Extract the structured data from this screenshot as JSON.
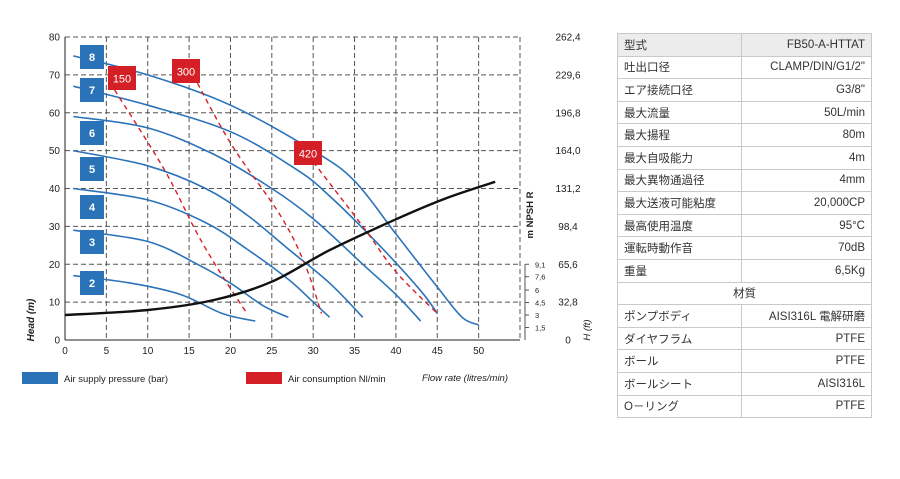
{
  "chart_data": {
    "type": "line",
    "xlabel": "Flow rate (litres/min)",
    "ylabel_left": "Head (m)",
    "ylabel_right": "H (ft)",
    "npsh_label": "m NPSH R",
    "xlim": [
      0,
      55
    ],
    "ylim": [
      0,
      80
    ],
    "grid": true,
    "x_ticks": [
      "0",
      "5",
      "10",
      "15",
      "20",
      "25",
      "30",
      "35",
      "40",
      "45",
      "50"
    ],
    "y_ticks": [
      "0",
      "10",
      "20",
      "30",
      "40",
      "50",
      "60",
      "70",
      "80"
    ],
    "y_ticks_ft": [
      "0",
      "32,8",
      "65,6",
      "98,4",
      "131,2",
      "164,0",
      "196,8",
      "229,6",
      "262,4"
    ],
    "npsh_ticks": [
      {
        "label": "1,5",
        "value": 1.5
      },
      {
        "label": "3",
        "value": 3
      },
      {
        "label": "4,5",
        "value": 4.5
      },
      {
        "label": "6",
        "value": 6
      },
      {
        "label": "7,6",
        "value": 7.6
      },
      {
        "label": "9,1",
        "value": 9.1
      }
    ],
    "legend": [
      {
        "label": "Air supply pressure (bar)",
        "color": "#2b73b9"
      },
      {
        "label": "Air consumption Nl/min",
        "color": "#d51f26"
      }
    ],
    "pressure_series": [
      {
        "name": "8",
        "points": [
          [
            1,
            75
          ],
          [
            10,
            70
          ],
          [
            20,
            62
          ],
          [
            30,
            50
          ],
          [
            35,
            42
          ],
          [
            40,
            28
          ],
          [
            45,
            14
          ],
          [
            48,
            6
          ],
          [
            50,
            4
          ]
        ]
      },
      {
        "name": "7",
        "points": [
          [
            1,
            67
          ],
          [
            10,
            62
          ],
          [
            20,
            55
          ],
          [
            28,
            45
          ],
          [
            32,
            38
          ],
          [
            38,
            25
          ],
          [
            43,
            13
          ],
          [
            45,
            7
          ]
        ]
      },
      {
        "name": "6",
        "points": [
          [
            1,
            59
          ],
          [
            10,
            56
          ],
          [
            18,
            49
          ],
          [
            25,
            40
          ],
          [
            30,
            32
          ],
          [
            36,
            20
          ],
          [
            40,
            12
          ],
          [
            43,
            5
          ]
        ]
      },
      {
        "name": "5",
        "points": [
          [
            1,
            50
          ],
          [
            10,
            46
          ],
          [
            17,
            40
          ],
          [
            22,
            33
          ],
          [
            27,
            24
          ],
          [
            32,
            15
          ],
          [
            36,
            6
          ]
        ]
      },
      {
        "name": "4",
        "points": [
          [
            1,
            40
          ],
          [
            10,
            37
          ],
          [
            17,
            31
          ],
          [
            22,
            24
          ],
          [
            27,
            16
          ],
          [
            30,
            10
          ],
          [
            32,
            6
          ]
        ]
      },
      {
        "name": "3",
        "points": [
          [
            1,
            29
          ],
          [
            10,
            26
          ],
          [
            16,
            20
          ],
          [
            20,
            15
          ],
          [
            24,
            9
          ],
          [
            27,
            6
          ]
        ]
      },
      {
        "name": "2",
        "points": [
          [
            1,
            17
          ],
          [
            8,
            15
          ],
          [
            14,
            12
          ],
          [
            19,
            7
          ],
          [
            23,
            5
          ]
        ]
      }
    ],
    "air_series": [
      {
        "name": "150",
        "points": [
          [
            6,
            66
          ],
          [
            12,
            45
          ],
          [
            16,
            28
          ],
          [
            19,
            17
          ],
          [
            22,
            7
          ]
        ]
      },
      {
        "name": "300",
        "points": [
          [
            15,
            72
          ],
          [
            20,
            52
          ],
          [
            26,
            33
          ],
          [
            29,
            20
          ],
          [
            31,
            7
          ]
        ]
      },
      {
        "name": "420",
        "points": [
          [
            30,
            47
          ],
          [
            36,
            30
          ],
          [
            40,
            18
          ],
          [
            45,
            7
          ]
        ]
      }
    ],
    "npsh_series": {
      "name": "NPSH",
      "points": [
        [
          0,
          3
        ],
        [
          10,
          3.6
        ],
        [
          18,
          4.8
        ],
        [
          25,
          7
        ],
        [
          32,
          10.8
        ],
        [
          40,
          14.5
        ],
        [
          46,
          17
        ],
        [
          52,
          19
        ]
      ]
    },
    "pressure_color": "#2b73b9",
    "air_color": "#d51f26",
    "npsh_color": "#111111"
  },
  "spec_table": {
    "rows": [
      {
        "k": "型式",
        "v": "FB50-A-HTTAT"
      },
      {
        "k": "吐出口径",
        "v": "CLAMP/DIN/G1/2\""
      },
      {
        "k": "エア接続口径",
        "v": "G3/8\""
      },
      {
        "k": "最大流量",
        "v": "50L/min"
      },
      {
        "k": "最大揚程",
        "v": "80m"
      },
      {
        "k": "最大自吸能力",
        "v": "4m"
      },
      {
        "k": "最大異物通過径",
        "v": "4mm"
      },
      {
        "k": "最大送液可能粘度",
        "v": "20,000CP"
      },
      {
        "k": "最高使用温度",
        "v": "95°C"
      },
      {
        "k": "運転時動作音",
        "v": "70dB"
      },
      {
        "k": "重量",
        "v": "6,5Kg"
      }
    ],
    "section_label": "材質",
    "materials": [
      {
        "k": "ポンプボディ",
        "v": "AISI316L 電解研磨"
      },
      {
        "k": "ダイヤフラム",
        "v": "PTFE"
      },
      {
        "k": "ボール",
        "v": "PTFE"
      },
      {
        "k": "ボールシート",
        "v": "AISI316L"
      },
      {
        "k": "O－リング",
        "v": "PTFE"
      }
    ]
  }
}
